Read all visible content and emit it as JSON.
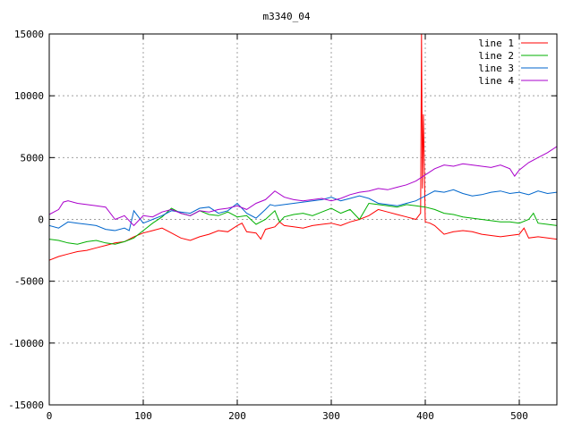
{
  "chart_data": {
    "type": "line",
    "title": "m3340_04",
    "xlabel": "",
    "ylabel": "",
    "xlim": [
      0,
      540
    ],
    "ylim": [
      -15000,
      15000
    ],
    "xticks": [
      0,
      100,
      200,
      300,
      400,
      500
    ],
    "yticks": [
      -15000,
      -10000,
      -5000,
      0,
      5000,
      10000,
      15000
    ],
    "grid": true,
    "legend_position": "top-right",
    "series": [
      {
        "name": "line 1",
        "color": "#ff0000",
        "x": [
          0,
          10,
          20,
          30,
          40,
          50,
          60,
          70,
          80,
          90,
          100,
          110,
          120,
          130,
          140,
          150,
          160,
          170,
          180,
          190,
          200,
          205,
          210,
          220,
          225,
          230,
          240,
          245,
          250,
          260,
          270,
          280,
          290,
          300,
          310,
          320,
          330,
          340,
          350,
          360,
          370,
          380,
          390,
          395,
          396,
          397,
          398,
          400,
          405,
          410,
          420,
          430,
          440,
          450,
          460,
          470,
          480,
          490,
          500,
          505,
          510,
          520,
          530,
          540
        ],
        "y": [
          -3300,
          -3000,
          -2800,
          -2600,
          -2500,
          -2300,
          -2100,
          -1900,
          -1800,
          -1400,
          -1100,
          -900,
          -700,
          -1100,
          -1500,
          -1700,
          -1400,
          -1200,
          -900,
          -1000,
          -500,
          -300,
          -1000,
          -1100,
          -1600,
          -800,
          -600,
          -200,
          -500,
          -600,
          -700,
          -500,
          -400,
          -300,
          -500,
          -200,
          0,
          300,
          800,
          600,
          400,
          200,
          0,
          500,
          15000,
          2500,
          8500,
          -200,
          -300,
          -500,
          -1200,
          -1000,
          -900,
          -1000,
          -1200,
          -1300,
          -1400,
          -1300,
          -1200,
          -700,
          -1500,
          -1400,
          -1500,
          -1600
        ]
      },
      {
        "name": "line 2",
        "color": "#00b000",
        "x": [
          0,
          10,
          20,
          30,
          40,
          50,
          60,
          70,
          80,
          90,
          100,
          110,
          120,
          130,
          140,
          150,
          160,
          170,
          180,
          190,
          200,
          210,
          220,
          230,
          240,
          245,
          250,
          260,
          270,
          280,
          290,
          300,
          310,
          320,
          330,
          340,
          350,
          360,
          370,
          380,
          390,
          400,
          410,
          420,
          430,
          440,
          450,
          460,
          470,
          480,
          490,
          500,
          510,
          515,
          520,
          530,
          540
        ],
        "y": [
          -1600,
          -1700,
          -1900,
          -2000,
          -1800,
          -1700,
          -1900,
          -2000,
          -1800,
          -1500,
          -900,
          -300,
          200,
          900,
          500,
          300,
          700,
          400,
          300,
          600,
          200,
          300,
          -400,
          0,
          700,
          -200,
          200,
          400,
          500,
          300,
          600,
          900,
          500,
          800,
          0,
          1300,
          1200,
          1100,
          1000,
          1200,
          1100,
          1000,
          800,
          500,
          400,
          200,
          100,
          0,
          -100,
          -200,
          -200,
          -300,
          0,
          500,
          -300,
          -400,
          -500
        ]
      },
      {
        "name": "line 3",
        "color": "#0066cc",
        "x": [
          0,
          10,
          20,
          30,
          40,
          50,
          60,
          70,
          80,
          85,
          90,
          100,
          110,
          120,
          130,
          140,
          150,
          160,
          170,
          180,
          190,
          200,
          210,
          220,
          230,
          235,
          240,
          250,
          260,
          270,
          280,
          290,
          300,
          310,
          320,
          330,
          340,
          350,
          360,
          370,
          380,
          390,
          400,
          410,
          420,
          430,
          440,
          450,
          460,
          470,
          480,
          490,
          500,
          510,
          520,
          530,
          540
        ],
        "y": [
          -500,
          -700,
          -200,
          -300,
          -400,
          -500,
          -800,
          -900,
          -700,
          -900,
          700,
          -300,
          0,
          300,
          700,
          600,
          500,
          900,
          1000,
          500,
          700,
          1300,
          500,
          100,
          800,
          1200,
          1100,
          1200,
          1300,
          1400,
          1500,
          1600,
          1800,
          1500,
          1700,
          1900,
          1700,
          1300,
          1200,
          1100,
          1300,
          1500,
          1900,
          2300,
          2200,
          2400,
          2100,
          1900,
          2000,
          2200,
          2300,
          2100,
          2200,
          2000,
          2300,
          2100,
          2200
        ]
      },
      {
        "name": "line 4",
        "color": "#aa00cc",
        "x": [
          0,
          10,
          15,
          20,
          30,
          40,
          50,
          60,
          70,
          80,
          90,
          100,
          110,
          120,
          130,
          140,
          150,
          160,
          170,
          180,
          190,
          200,
          210,
          220,
          230,
          240,
          250,
          260,
          270,
          280,
          290,
          300,
          310,
          320,
          330,
          340,
          350,
          360,
          370,
          380,
          390,
          400,
          410,
          420,
          430,
          440,
          450,
          460,
          470,
          480,
          490,
          495,
          500,
          510,
          520,
          530,
          540
        ],
        "y": [
          400,
          800,
          1400,
          1500,
          1300,
          1200,
          1100,
          1000,
          0,
          300,
          -500,
          300,
          200,
          600,
          800,
          500,
          300,
          700,
          600,
          800,
          900,
          1100,
          800,
          1300,
          1600,
          2300,
          1800,
          1600,
          1500,
          1600,
          1700,
          1500,
          1700,
          2000,
          2200,
          2300,
          2500,
          2400,
          2600,
          2800,
          3100,
          3600,
          4100,
          4400,
          4300,
          4500,
          4400,
          4300,
          4200,
          4400,
          4100,
          3500,
          4000,
          4600,
          5000,
          5400,
          5900
        ]
      }
    ]
  }
}
